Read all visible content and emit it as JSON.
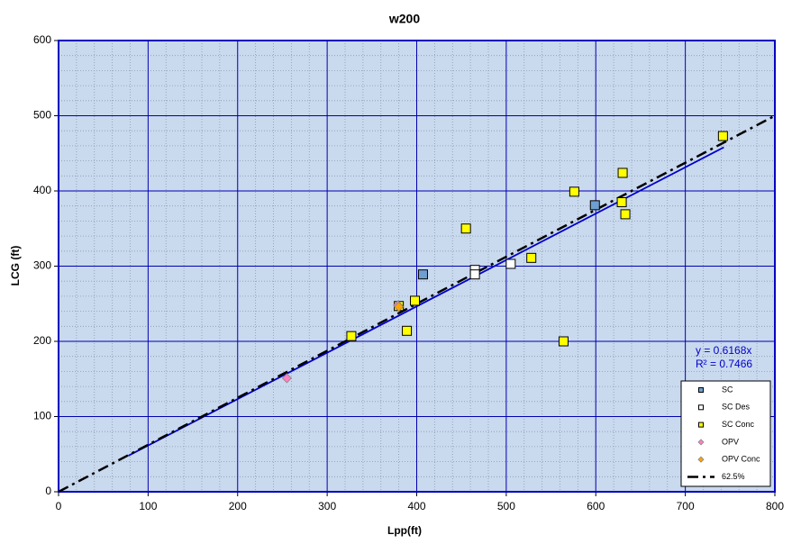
{
  "chart_data": {
    "type": "scatter",
    "title": "w200",
    "x_label": "Lpp(ft)",
    "y_label": "LCG (ft)",
    "xlim": [
      0,
      800
    ],
    "ylim": [
      0,
      600
    ],
    "xticks": [
      0,
      100,
      200,
      300,
      400,
      500,
      600,
      700,
      800
    ],
    "yticks": [
      0,
      100,
      200,
      300,
      400,
      500,
      600
    ],
    "grid": true,
    "minor_divisions": 5,
    "legend": "lower right",
    "series": [
      {
        "name": "SC",
        "color": "#6f9fd0",
        "marker": "square",
        "x": [
          407,
          599
        ],
        "values": [
          289,
          381
        ]
      },
      {
        "name": "SC Des",
        "color": "#ffffff",
        "marker": "square",
        "x": [
          465,
          465,
          505
        ],
        "values": [
          295,
          289,
          303
        ]
      },
      {
        "name": "SC Conc",
        "color": "#ffff00",
        "marker": "square",
        "x": [
          742,
          630,
          576,
          629,
          633,
          455,
          528,
          564,
          398,
          389,
          327,
          380
        ],
        "values": [
          473,
          424,
          399,
          385,
          369,
          350,
          311,
          200,
          254,
          214,
          207,
          247
        ]
      },
      {
        "name": "OPV",
        "color": "#ff80c0",
        "marker": "diamond",
        "x": [
          255,
          379
        ],
        "values": [
          151,
          248
        ]
      },
      {
        "name": "OPV Conc",
        "color": "#ffa500",
        "marker": "diamond",
        "x": [
          380
        ],
        "values": [
          246
        ]
      },
      {
        "name": "62.5%",
        "color": "#000000",
        "marker": "dash-dot",
        "x": [
          0,
          800
        ],
        "values": [
          0,
          500
        ]
      }
    ],
    "trendline": {
      "color": "#0000cc",
      "x": [
        78,
        743
      ],
      "values": [
        48,
        458
      ],
      "equation": "y = 0.6168x",
      "r_squared": "R² = 0.7466"
    }
  }
}
